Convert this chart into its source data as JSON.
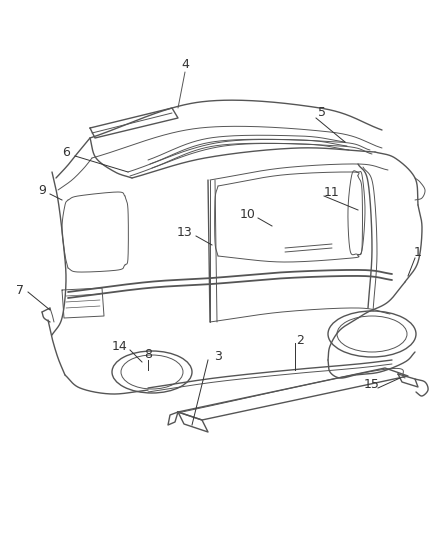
{
  "bg_color": "#ffffff",
  "line_color": "#555555",
  "text_color": "#333333",
  "label_fontsize": 9
}
